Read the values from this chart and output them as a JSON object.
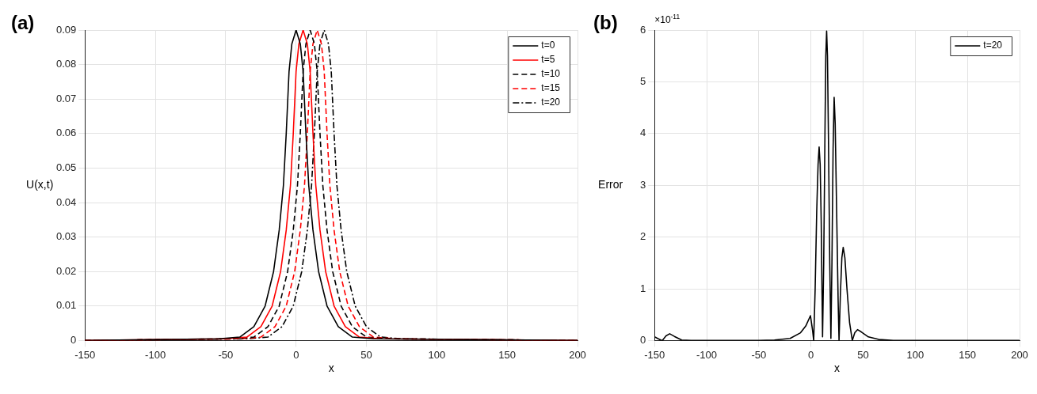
{
  "chart_data": [
    {
      "type": "line",
      "title": "(a)",
      "xlabel": "x",
      "ylabel": "U(x,t)",
      "xlim": [
        -150,
        200
      ],
      "xticks": [
        -150,
        -100,
        -50,
        0,
        50,
        100,
        150,
        200
      ],
      "ylim": [
        0,
        0.09
      ],
      "yticks": [
        0,
        0.01,
        0.02,
        0.03,
        0.04,
        0.05,
        0.06,
        0.07,
        0.08,
        0.09
      ],
      "grid": true,
      "legend": "top right",
      "series": [
        {
          "name": "t=0",
          "color": "#000000",
          "line_style": "solid",
          "x": [
            -150,
            -55,
            -40,
            -30,
            -22,
            -16,
            -12,
            -9,
            -7,
            -5,
            -3,
            0,
            3,
            5,
            7,
            9,
            12,
            16,
            22,
            30,
            40,
            55,
            200
          ],
          "values": [
            0,
            0.0005,
            0.001,
            0.004,
            0.01,
            0.02,
            0.032,
            0.045,
            0.06,
            0.078,
            0.086,
            0.09,
            0.086,
            0.078,
            0.06,
            0.045,
            0.032,
            0.02,
            0.01,
            0.004,
            0.001,
            0.0005,
            0
          ]
        },
        {
          "name": "t=5",
          "color": "#ff0000",
          "line_style": "solid",
          "x": [
            -150,
            -50,
            -35,
            -25,
            -17,
            -11,
            -7,
            -4,
            -2,
            0,
            2,
            5,
            8,
            10,
            12,
            14,
            17,
            21,
            27,
            35,
            45,
            60,
            200
          ],
          "values": [
            0,
            0.0005,
            0.001,
            0.004,
            0.01,
            0.02,
            0.032,
            0.045,
            0.06,
            0.078,
            0.086,
            0.09,
            0.086,
            0.078,
            0.06,
            0.045,
            0.032,
            0.02,
            0.01,
            0.004,
            0.001,
            0.0005,
            0
          ]
        },
        {
          "name": "t=10",
          "color": "#000000",
          "line_style": "dashed",
          "x": [
            -150,
            -45,
            -30,
            -20,
            -12,
            -6,
            -2,
            1,
            3,
            5,
            7,
            10,
            13,
            15,
            17,
            19,
            22,
            26,
            32,
            40,
            50,
            65,
            200
          ],
          "values": [
            0,
            0.0005,
            0.001,
            0.004,
            0.01,
            0.02,
            0.032,
            0.045,
            0.06,
            0.078,
            0.086,
            0.09,
            0.086,
            0.078,
            0.06,
            0.045,
            0.032,
            0.02,
            0.01,
            0.004,
            0.001,
            0.0005,
            0
          ]
        },
        {
          "name": "t=15",
          "color": "#ff0000",
          "line_style": "dashed",
          "x": [
            -150,
            -40,
            -25,
            -15,
            -7,
            -1,
            3,
            6,
            8,
            10,
            12,
            15,
            18,
            20,
            22,
            24,
            27,
            31,
            37,
            45,
            55,
            70,
            200
          ],
          "values": [
            0,
            0.0005,
            0.001,
            0.004,
            0.01,
            0.02,
            0.032,
            0.045,
            0.06,
            0.078,
            0.086,
            0.09,
            0.086,
            0.078,
            0.06,
            0.045,
            0.032,
            0.02,
            0.01,
            0.004,
            0.001,
            0.0005,
            0
          ]
        },
        {
          "name": "t=20",
          "color": "#000000",
          "line_style": "dashdot",
          "x": [
            -150,
            -35,
            -20,
            -10,
            -2,
            4,
            8,
            11,
            13,
            15,
            17,
            20,
            23,
            25,
            27,
            29,
            32,
            36,
            42,
            50,
            60,
            75,
            200
          ],
          "values": [
            0,
            0.0005,
            0.001,
            0.004,
            0.01,
            0.02,
            0.032,
            0.045,
            0.06,
            0.078,
            0.086,
            0.09,
            0.086,
            0.078,
            0.06,
            0.045,
            0.032,
            0.02,
            0.01,
            0.004,
            0.001,
            0.0005,
            0
          ]
        }
      ]
    },
    {
      "type": "line",
      "title": "(b)",
      "xlabel": "x",
      "ylabel": "Error",
      "annotations": [
        "×10$^{-11}$"
      ],
      "xlim": [
        -150,
        200
      ],
      "xticks": [
        -150,
        -100,
        -50,
        0,
        50,
        100,
        150,
        200
      ],
      "ylim": [
        0,
        6
      ],
      "yticks": [
        0,
        1,
        2,
        3,
        4,
        5,
        6
      ],
      "grid": true,
      "legend": "top right",
      "series": [
        {
          "name": "t=20",
          "color": "#000000",
          "line_style": "solid",
          "x": [
            -150,
            -146,
            -144,
            -142.6,
            -139,
            -135.5,
            -131,
            -124,
            -115,
            -50,
            -35,
            -20,
            -10,
            -5,
            -0.5,
            1.5,
            2.6,
            4,
            5.5,
            6.8,
            7.8,
            8.8,
            9.8,
            10.6,
            11.1,
            12.2,
            13.4,
            14.2,
            15,
            15.8,
            16.7,
            18,
            19.1,
            20.1,
            21.2,
            22.2,
            23.2,
            24.6,
            26,
            26.9,
            28.2,
            29.6,
            30.9,
            32.5,
            34.5,
            37,
            39.6,
            42,
            44.6,
            48,
            55,
            65,
            79,
            200
          ],
          "values": [
            0.07,
            0.03,
            0.01,
            0,
            0.09,
            0.13,
            0.08,
            0.01,
            0,
            0,
            0.01,
            0.04,
            0.15,
            0.28,
            0.48,
            0.2,
            0,
            1.0,
            2.5,
            3.4,
            3.74,
            3.4,
            2.3,
            0.9,
            0.07,
            1.5,
            4.0,
            5.5,
            5.98,
            5.5,
            4.0,
            1.5,
            0.04,
            1.5,
            3.7,
            4.7,
            4.2,
            2.5,
            0.8,
            0,
            0.9,
            1.6,
            1.8,
            1.6,
            1.0,
            0.35,
            0,
            0.15,
            0.21,
            0.17,
            0.07,
            0.02,
            0,
            0
          ]
        }
      ]
    }
  ]
}
